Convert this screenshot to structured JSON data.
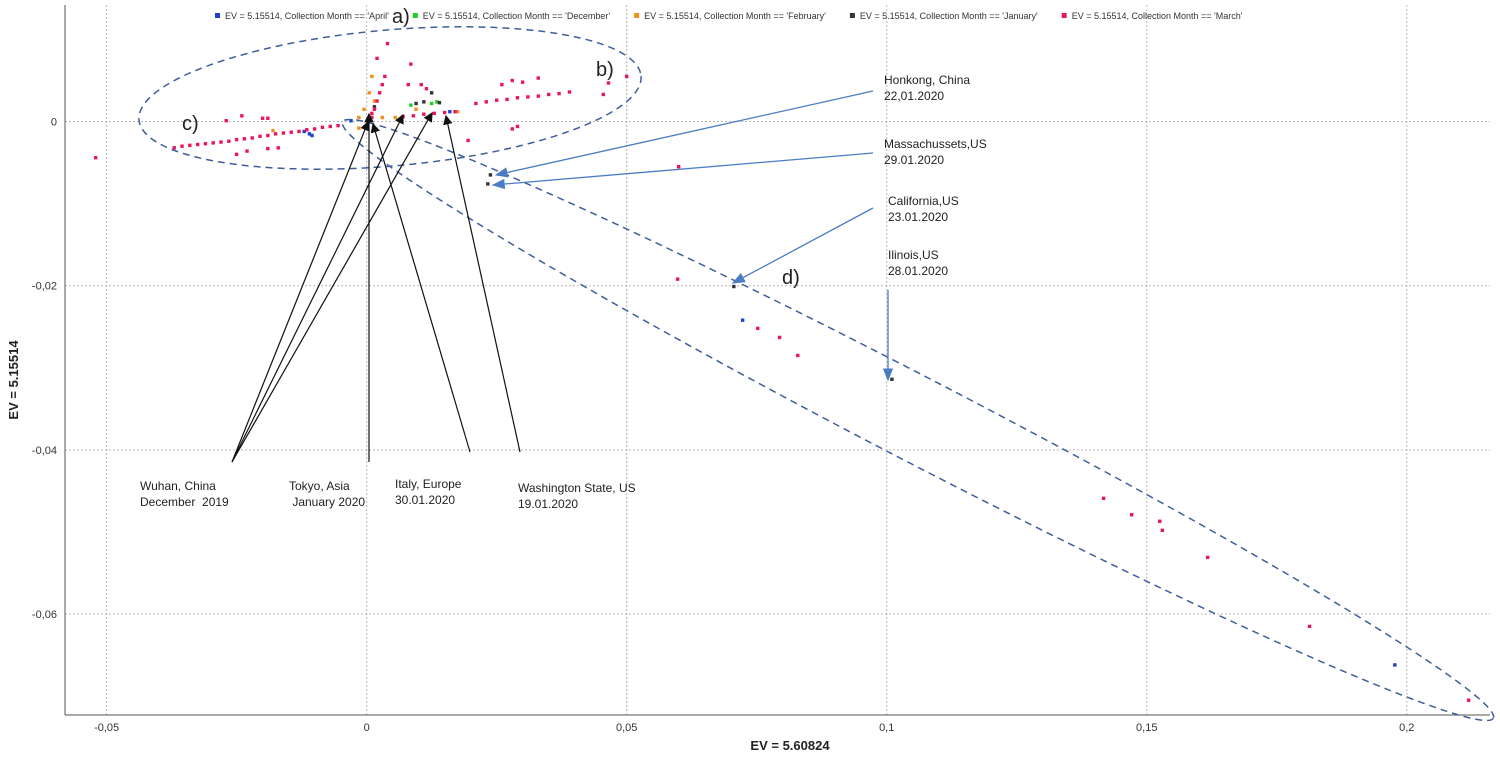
{
  "chart_data": {
    "type": "scatter",
    "title": "",
    "xlabel": "EV = 5.60824",
    "ylabel": "EV = 5.15514",
    "xlim": [
      -0.058,
      0.216
    ],
    "ylim": [
      -0.0723,
      0.0142
    ],
    "grid": true,
    "legend_position": "top",
    "x_ticks": [
      {
        "v": -0.05,
        "label": "-0,05"
      },
      {
        "v": 0,
        "label": "0"
      },
      {
        "v": 0.05,
        "label": "0,05"
      },
      {
        "v": 0.1,
        "label": "0,1"
      },
      {
        "v": 0.15,
        "label": "0,15"
      },
      {
        "v": 0.2,
        "label": "0,2"
      }
    ],
    "y_ticks": [
      {
        "v": 0,
        "label": "0"
      },
      {
        "v": -0.02,
        "label": "-0,02"
      },
      {
        "v": -0.04,
        "label": "-0,04"
      },
      {
        "v": -0.06,
        "label": "-0,06"
      }
    ],
    "series": [
      {
        "name": "EV = 5.15514, Collection Month == 'April'",
        "color": "#1f3fd0",
        "points": [
          [
            -0.003,
            0.0001
          ],
          [
            -0.011,
            -0.0015
          ],
          [
            -0.012,
            -0.0012
          ],
          [
            -0.0105,
            -0.0017
          ],
          [
            0.016,
            0.0012
          ],
          [
            0.0723,
            -0.0242
          ],
          [
            0.1977,
            -0.0662
          ]
        ]
      },
      {
        "name": "EV = 5.15514, Collection Month == 'December'",
        "color": "#22cc22",
        "points": [
          [
            0.0085,
            0.002
          ],
          [
            0.0125,
            0.0022
          ],
          [
            0.0135,
            0.0024
          ]
        ]
      },
      {
        "name": "EV = 5.15514, Collection Month == 'February'",
        "color": "#f0901a",
        "points": [
          [
            0.001,
            0.0055
          ],
          [
            0.0005,
            0.0035
          ],
          [
            0.0015,
            0.0025
          ],
          [
            -0.0005,
            0.0015
          ],
          [
            0.003,
            0.0005
          ],
          [
            0.0055,
            0.0005
          ],
          [
            -0.0015,
            0.0005
          ],
          [
            0.0095,
            0.0015
          ],
          [
            0.0175,
            0.0012
          ],
          [
            -0.0015,
            -0.0008
          ],
          [
            -0.018,
            -0.0011
          ]
        ]
      },
      {
        "name": "EV = 5.15514, Collection Month == 'January'",
        "color": "#333333",
        "points": [
          [
            0.0015,
            0.0018
          ],
          [
            0.0095,
            0.0022
          ],
          [
            0.011,
            0.0024
          ],
          [
            0.0125,
            0.0035
          ],
          [
            0.014,
            0.0023
          ],
          [
            0.0238,
            -0.0065
          ],
          [
            0.0233,
            -0.0076
          ],
          [
            0.0706,
            -0.0201
          ],
          [
            0.101,
            -0.0314
          ]
        ]
      },
      {
        "name": "EV = 5.15514, Collection Month == 'March'",
        "color": "#e8175d",
        "points": [
          [
            -0.037,
            -0.0032
          ],
          [
            -0.0355,
            -0.003
          ],
          [
            -0.034,
            -0.0029
          ],
          [
            -0.0325,
            -0.0028
          ],
          [
            -0.031,
            -0.0027
          ],
          [
            -0.0295,
            -0.0026
          ],
          [
            -0.028,
            -0.0025
          ],
          [
            -0.0265,
            -0.0024
          ],
          [
            -0.025,
            -0.0022
          ],
          [
            -0.0235,
            -0.0021
          ],
          [
            -0.022,
            -0.002
          ],
          [
            -0.0205,
            -0.0018
          ],
          [
            -0.019,
            -0.0017
          ],
          [
            -0.0175,
            -0.0015
          ],
          [
            -0.016,
            -0.0014
          ],
          [
            -0.0145,
            -0.0013
          ],
          [
            -0.013,
            -0.0012
          ],
          [
            -0.0115,
            -0.001
          ],
          [
            -0.01,
            -0.0009
          ],
          [
            -0.0085,
            -0.0007
          ],
          [
            -0.007,
            -0.0006
          ],
          [
            -0.0055,
            -0.0005
          ],
          [
            -0.025,
            -0.004
          ],
          [
            -0.023,
            -0.0036
          ],
          [
            -0.019,
            -0.0033
          ],
          [
            -0.017,
            -0.0032
          ],
          [
            -0.027,
            0.0001
          ],
          [
            -0.024,
            0.0007
          ],
          [
            -0.02,
            0.0004
          ],
          [
            -0.019,
            0.0004
          ],
          [
            0.001,
            0.0005
          ],
          [
            0.0015,
            0.0015
          ],
          [
            0.002,
            0.0025
          ],
          [
            0.0025,
            0.0035
          ],
          [
            0.003,
            0.0045
          ],
          [
            0.0035,
            0.0055
          ],
          [
            0.001,
            0.001
          ],
          [
            0.002,
            0.0077
          ],
          [
            0.004,
            0.0095
          ],
          [
            0.0085,
            0.007
          ],
          [
            0.008,
            0.0045
          ],
          [
            0.0115,
            0.004
          ],
          [
            0.0105,
            0.0045
          ],
          [
            0.007,
            0.0006
          ],
          [
            0.009,
            0.0007
          ],
          [
            0.011,
            0.0009
          ],
          [
            0.013,
            0.001
          ],
          [
            0.015,
            0.0011
          ],
          [
            0.017,
            0.0012
          ],
          [
            0.0195,
            -0.0023
          ],
          [
            0.021,
            0.0022
          ],
          [
            0.023,
            0.0024
          ],
          [
            0.025,
            0.0026
          ],
          [
            0.027,
            0.0027
          ],
          [
            0.029,
            0.0029
          ],
          [
            0.031,
            0.003
          ],
          [
            0.033,
            0.0031
          ],
          [
            0.035,
            0.0033
          ],
          [
            0.037,
            0.0034
          ],
          [
            0.039,
            0.0036
          ],
          [
            0.026,
            0.0045
          ],
          [
            0.028,
            0.005
          ],
          [
            0.03,
            0.0048
          ],
          [
            0.033,
            0.0053
          ],
          [
            0.029,
            -0.0006
          ],
          [
            0.028,
            -0.0009
          ],
          [
            0.0455,
            0.0033
          ],
          [
            0.0465,
            0.0047
          ],
          [
            0.05,
            0.0055
          ],
          [
            -0.0521,
            -0.0044
          ],
          [
            0.06,
            -0.0055
          ],
          [
            0.0598,
            -0.0192
          ],
          [
            0.0752,
            -0.0252
          ],
          [
            0.0794,
            -0.0263
          ],
          [
            0.0829,
            -0.0285
          ],
          [
            0.1417,
            -0.0459
          ],
          [
            0.1471,
            -0.0479
          ],
          [
            0.1525,
            -0.0487
          ],
          [
            0.153,
            -0.0498
          ],
          [
            0.1617,
            -0.0531
          ],
          [
            0.1813,
            -0.0615
          ],
          [
            0.2119,
            -0.0705
          ]
        ]
      }
    ],
    "annotations": {
      "cluster_labels": [
        "a)",
        "b)",
        "c)",
        "d)"
      ],
      "wuhan": [
        "Wuhan, China",
        "December  2019"
      ],
      "tokyo": [
        "Tokyo, Asia",
        " January 2020"
      ],
      "italy": [
        "Italy, Europe",
        "30.01.2020"
      ],
      "washington": [
        "Washington State, US",
        "19.01.2020"
      ],
      "honkong": [
        "Honkong, China",
        "22,01.2020"
      ],
      "massachussets": [
        "Massachussets,US",
        "29.01.2020"
      ],
      "california": [
        "California,US",
        "23.01.2020"
      ],
      "ilinois": [
        "Ilinois,US",
        "28.01.2020"
      ]
    }
  }
}
